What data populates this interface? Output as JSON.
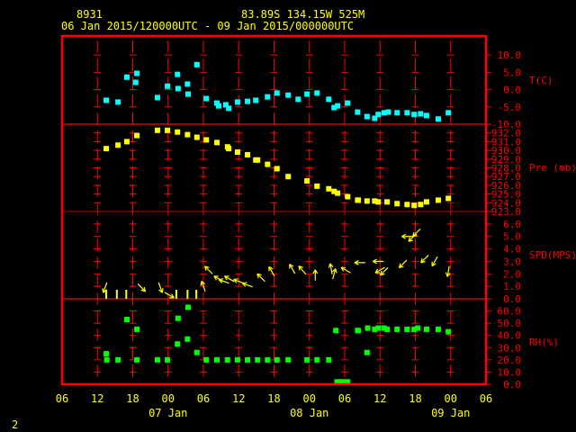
{
  "header": {
    "station": "8931",
    "location": "83.89S  134.15W   525M",
    "period": "06 Jan 2015/120000UTC - 09 Jan 2015/000000UTC"
  },
  "footer": {
    "page_number": "2"
  },
  "colors": {
    "frame": "#ff0000",
    "text": "#ffff00",
    "temp": "#00ffff",
    "pressure": "#ffff00",
    "wind": "#ffff00",
    "rh": "#00ff00"
  },
  "chart_data": {
    "type": "scatter",
    "title": "8931  83.89S 134.15W 525M",
    "x_unit": "hours since 06 Jan 2015 06UTC",
    "xlim": [
      0,
      72
    ],
    "x_ticks": [
      {
        "h": 0,
        "label": "06"
      },
      {
        "h": 6,
        "label": "12"
      },
      {
        "h": 12,
        "label": "18"
      },
      {
        "h": 18,
        "label": "00"
      },
      {
        "h": 24,
        "label": "06"
      },
      {
        "h": 30,
        "label": "12"
      },
      {
        "h": 36,
        "label": "18"
      },
      {
        "h": 42,
        "label": "00"
      },
      {
        "h": 48,
        "label": "06"
      },
      {
        "h": 54,
        "label": "12"
      },
      {
        "h": 60,
        "label": "18"
      },
      {
        "h": 66,
        "label": "00"
      },
      {
        "h": 72,
        "label": "06"
      }
    ],
    "date_labels": [
      {
        "h": 18,
        "label": "07 Jan"
      },
      {
        "h": 42,
        "label": "08 Jan"
      },
      {
        "h": 66,
        "label": "09 Jan"
      }
    ],
    "panels": [
      {
        "name": "T(C)",
        "ylim": [
          -10,
          15.5
        ],
        "ticks": [
          "10.0",
          "5.0",
          "0.0",
          "-5.0",
          "-10.0"
        ],
        "tick_values": [
          10,
          5,
          0,
          -5,
          -10
        ],
        "points": [
          [
            7.5,
            -3.1
          ],
          [
            9.5,
            -3.6
          ],
          [
            11,
            3.6
          ],
          [
            12.7,
            4.7
          ],
          [
            12.5,
            2.1
          ],
          [
            16.2,
            -2.3
          ],
          [
            17.9,
            1.0
          ],
          [
            19.6,
            4.4
          ],
          [
            19.7,
            0.3
          ],
          [
            21.3,
            1.6
          ],
          [
            21.4,
            -1.3
          ],
          [
            22.9,
            7.2
          ],
          [
            24.5,
            -2.6
          ],
          [
            26.3,
            -3.9
          ],
          [
            26.6,
            -4.7
          ],
          [
            27.8,
            -4.4
          ],
          [
            28.3,
            -5.4
          ],
          [
            29.8,
            -3.6
          ],
          [
            31.5,
            -3.4
          ],
          [
            32.9,
            -3.1
          ],
          [
            34.9,
            -2.1
          ],
          [
            36.5,
            -1.0
          ],
          [
            38.4,
            -1.6
          ],
          [
            40.1,
            -2.8
          ],
          [
            41.6,
            -1.3
          ],
          [
            43.3,
            -1.0
          ],
          [
            45.3,
            -2.8
          ],
          [
            46.2,
            -5.2
          ],
          [
            46.8,
            -4.7
          ],
          [
            48.5,
            -3.9
          ],
          [
            50.2,
            -6.5
          ],
          [
            51.8,
            -7.8
          ],
          [
            53.1,
            -8.3
          ],
          [
            53.7,
            -7.2
          ],
          [
            54.7,
            -6.7
          ],
          [
            55.4,
            -6.5
          ],
          [
            56.9,
            -6.7
          ],
          [
            58.6,
            -6.7
          ],
          [
            59.8,
            -7.2
          ],
          [
            60.9,
            -7.0
          ],
          [
            61.9,
            -7.5
          ],
          [
            63.9,
            -8.5
          ],
          [
            65.6,
            -6.7
          ]
        ]
      },
      {
        "name": "Pre (mb)",
        "ylim": [
          923,
          933
        ],
        "ticks": [
          "932.0",
          "931.0",
          "930.0",
          "929.0",
          "928.0",
          "927.0",
          "926.0",
          "925.0",
          "924.0",
          "923.0"
        ],
        "tick_values": [
          932,
          931,
          930,
          929,
          928,
          927,
          926,
          925,
          924,
          923
        ],
        "points": [
          [
            7.5,
            930.2
          ],
          [
            9.5,
            930.6
          ],
          [
            11,
            931.0
          ],
          [
            12.7,
            931.7
          ],
          [
            16.2,
            932.3
          ],
          [
            17.9,
            932.3
          ],
          [
            19.6,
            932.1
          ],
          [
            21.3,
            931.8
          ],
          [
            22.9,
            931.5
          ],
          [
            24.5,
            931.2
          ],
          [
            26.3,
            930.9
          ],
          [
            28.1,
            930.4
          ],
          [
            28.3,
            930.2
          ],
          [
            29.8,
            929.8
          ],
          [
            31.5,
            929.5
          ],
          [
            32.9,
            928.9
          ],
          [
            33.2,
            928.9
          ],
          [
            34.9,
            928.4
          ],
          [
            36.5,
            927.9
          ],
          [
            38.4,
            927.0
          ],
          [
            41.6,
            926.5
          ],
          [
            43.3,
            925.9
          ],
          [
            45.3,
            925.6
          ],
          [
            46.2,
            925.3
          ],
          [
            46.8,
            925.1
          ],
          [
            48.5,
            924.7
          ],
          [
            50.2,
            924.3
          ],
          [
            50.3,
            924.3
          ],
          [
            51.8,
            924.2
          ],
          [
            53.1,
            924.2
          ],
          [
            53.7,
            924.1
          ],
          [
            55.2,
            924.1
          ],
          [
            56.9,
            923.9
          ],
          [
            58.6,
            923.8
          ],
          [
            59.8,
            923.7
          ],
          [
            60.9,
            923.8
          ],
          [
            61.9,
            924.1
          ],
          [
            63.9,
            924.3
          ],
          [
            65.6,
            924.5
          ]
        ]
      },
      {
        "name": "SPD(MPS)",
        "ylim": [
          0,
          7
        ],
        "ticks": [
          "6.0",
          "5.0",
          "4.0",
          "3.0",
          "2.0",
          "1.0",
          "0.0"
        ],
        "tick_values": [
          6,
          5,
          4,
          3,
          2,
          1,
          0
        ],
        "calm_hours": [
          7.5,
          9.3,
          10.9,
          19.4,
          21.3,
          22.8
        ],
        "wind": [
          [
            7.3,
            0.9,
            200
          ],
          [
            13.5,
            0.9,
            135
          ],
          [
            16.7,
            0.9,
            160
          ],
          [
            18.2,
            0.3,
            120
          ],
          [
            24.0,
            1.0,
            340
          ],
          [
            24.9,
            2.3,
            315
          ],
          [
            26.6,
            1.6,
            300
          ],
          [
            27.5,
            1.4,
            290
          ],
          [
            28.4,
            1.6,
            300
          ],
          [
            30.0,
            1.4,
            290
          ],
          [
            31.5,
            1.1,
            290
          ],
          [
            33.8,
            1.7,
            315
          ],
          [
            35.6,
            2.2,
            330
          ],
          [
            39.1,
            2.4,
            330
          ],
          [
            40.8,
            2.3,
            320
          ],
          [
            43.0,
            1.9,
            0
          ],
          [
            45.7,
            2.4,
            350
          ],
          [
            46.2,
            2.0,
            15
          ],
          [
            48.2,
            2.3,
            300
          ],
          [
            50.6,
            2.9,
            270
          ],
          [
            53.7,
            3.0,
            270
          ],
          [
            54.0,
            2.3,
            240
          ],
          [
            54.7,
            2.2,
            225
          ],
          [
            57.9,
            2.8,
            225
          ],
          [
            59.5,
            4.9,
            225
          ],
          [
            58.6,
            5.0,
            270
          ],
          [
            60.2,
            5.3,
            225
          ],
          [
            61.6,
            3.2,
            225
          ],
          [
            63.3,
            3.0,
            210
          ],
          [
            65.6,
            2.2,
            190
          ]
        ]
      },
      {
        "name": "RH(%)",
        "ylim": [
          0,
          70
        ],
        "ticks": [
          "60.0",
          "50.0",
          "40.0",
          "30.0",
          "20.0",
          "10.0",
          "0.0"
        ],
        "tick_values": [
          60,
          50,
          40,
          30,
          20,
          10,
          0
        ],
        "points": [
          [
            7.5,
            25
          ],
          [
            7.6,
            20
          ],
          [
            9.5,
            20
          ],
          [
            11,
            53
          ],
          [
            12.7,
            45
          ],
          [
            12.7,
            20
          ],
          [
            16.2,
            20
          ],
          [
            17.9,
            20
          ],
          [
            19.6,
            33
          ],
          [
            19.7,
            54
          ],
          [
            21.3,
            37
          ],
          [
            21.4,
            63
          ],
          [
            22.9,
            26
          ],
          [
            24.5,
            20
          ],
          [
            26.3,
            20
          ],
          [
            28.1,
            20
          ],
          [
            29.8,
            20
          ],
          [
            31.5,
            20
          ],
          [
            33.2,
            20
          ],
          [
            34.9,
            20
          ],
          [
            36.5,
            20
          ],
          [
            38.4,
            20
          ],
          [
            41.6,
            20
          ],
          [
            43.3,
            20
          ],
          [
            45.3,
            20
          ],
          [
            46.5,
            44
          ],
          [
            46.7,
            2
          ],
          [
            47.6,
            2
          ],
          [
            48.5,
            2
          ],
          [
            50.2,
            44
          ],
          [
            50.3,
            44
          ],
          [
            51.8,
            26
          ],
          [
            51.9,
            46
          ],
          [
            53.1,
            45
          ],
          [
            53.7,
            46
          ],
          [
            54.7,
            46
          ],
          [
            55.2,
            45
          ],
          [
            56.9,
            45
          ],
          [
            58.6,
            45
          ],
          [
            59.8,
            45
          ],
          [
            60.4,
            46
          ],
          [
            61.9,
            45
          ],
          [
            63.9,
            45
          ],
          [
            65.6,
            43
          ]
        ]
      }
    ]
  }
}
